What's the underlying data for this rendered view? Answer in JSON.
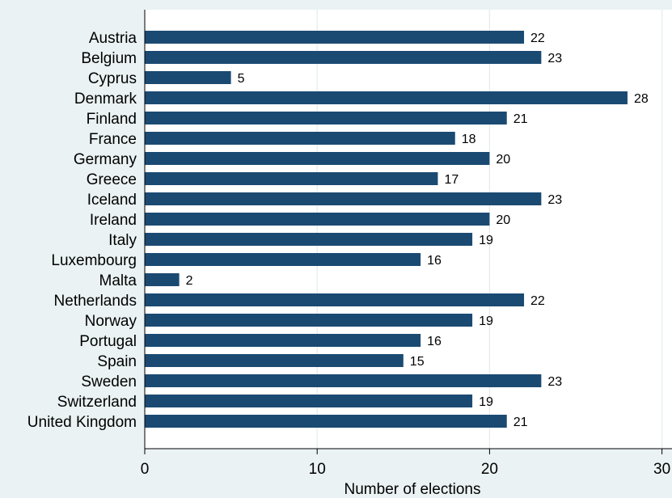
{
  "chart_data": {
    "type": "bar",
    "orientation": "horizontal",
    "categories": [
      "Austria",
      "Belgium",
      "Cyprus",
      "Denmark",
      "Finland",
      "France",
      "Germany",
      "Greece",
      "Iceland",
      "Ireland",
      "Italy",
      "Luxembourg",
      "Malta",
      "Netherlands",
      "Norway",
      "Portugal",
      "Spain",
      "Sweden",
      "Switzerland",
      "United Kingdom"
    ],
    "values": [
      22,
      23,
      5,
      28,
      21,
      18,
      20,
      17,
      23,
      20,
      19,
      16,
      2,
      22,
      19,
      16,
      15,
      23,
      19,
      21
    ],
    "xlabel": "Number of elections",
    "xlim": [
      0,
      30
    ],
    "xticks": [
      0,
      10,
      20,
      30
    ],
    "grid": true,
    "colors": {
      "bar": "#1a4a72",
      "plot_background": "#ffffff",
      "outer_background": "#eaf2f3",
      "grid": "#e2ecee"
    }
  }
}
